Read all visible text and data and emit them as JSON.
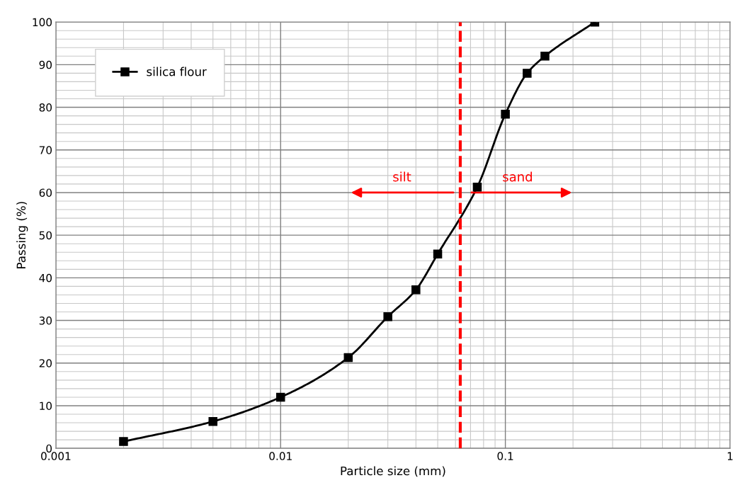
{
  "chart_data": {
    "type": "line",
    "xlabel": "Particle size (mm)",
    "ylabel": "Passing (%)",
    "log": "x",
    "xlim": [
      0.001,
      1
    ],
    "ylim": [
      0,
      100
    ],
    "xticks": [
      0.001,
      0.01,
      0.1,
      1
    ],
    "yticks": [
      0,
      10,
      20,
      30,
      40,
      50,
      60,
      70,
      80,
      90,
      100
    ],
    "grid": true,
    "legend": "top left",
    "marker": "square",
    "line_style": "solid",
    "series": [
      {
        "name": "silica flour",
        "color": "#000000",
        "x": [
          0.002,
          0.005,
          0.01,
          0.02,
          0.03,
          0.04,
          0.05,
          0.075,
          0.1,
          0.125,
          0.15,
          0.25
        ],
        "values": [
          1.6,
          6.3,
          12,
          21.3,
          30.9,
          37.2,
          45.6,
          61.3,
          78.4,
          88,
          92,
          100
        ]
      }
    ],
    "ref_lines": [
      {
        "axis": "x",
        "value": 0.063,
        "color": "#ff0000",
        "line_style": "dashed"
      }
    ],
    "annotations": [
      "silt",
      "sand"
    ]
  }
}
